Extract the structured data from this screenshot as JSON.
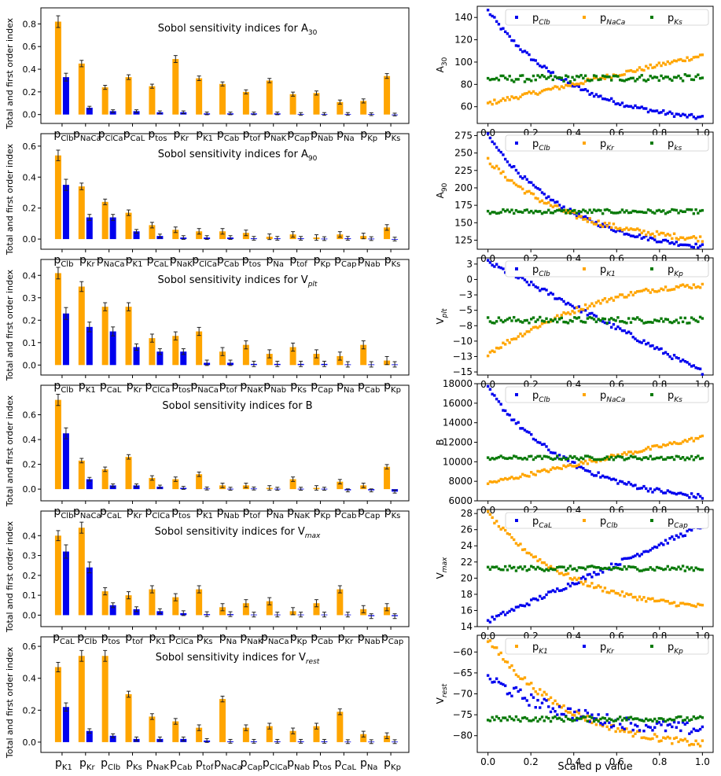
{
  "figure": {
    "left_ylabel": "Total and first order index",
    "right_xlabel": "Scaled p value",
    "colors": {
      "total": "#FFA500",
      "first": "#0000EE",
      "green": "#0A7A0A"
    }
  },
  "chart_data": [
    {
      "type": "bar",
      "panel": "sobol",
      "row": 0,
      "title_main": "Sobol sensitivity indices for A",
      "title_sub": "30",
      "ylabel": "Total and first order index",
      "ylim": [
        -0.03,
        0.9
      ],
      "yticks": [
        0.0,
        0.2,
        0.4,
        0.6,
        0.8
      ],
      "categories": [
        [
          "p",
          "Clb"
        ],
        [
          "p",
          "NaCa"
        ],
        [
          "p",
          "ClCa"
        ],
        [
          "p",
          "CaL"
        ],
        [
          "p",
          "tos"
        ],
        [
          "p",
          "Kr"
        ],
        [
          "p",
          "K1"
        ],
        [
          "p",
          "Cab"
        ],
        [
          "p",
          "tof"
        ],
        [
          "p",
          "NaK"
        ],
        [
          "p",
          "Cap"
        ],
        [
          "p",
          "Nab"
        ],
        [
          "p",
          "Na"
        ],
        [
          "p",
          "Kp"
        ],
        [
          "p",
          "Ks"
        ]
      ],
      "series": [
        {
          "name": "Total order",
          "values": [
            0.82,
            0.45,
            0.24,
            0.33,
            0.25,
            0.49,
            0.32,
            0.27,
            0.2,
            0.3,
            0.18,
            0.19,
            0.11,
            0.12,
            0.34
          ]
        },
        {
          "name": "First order",
          "values": [
            0.33,
            0.06,
            0.03,
            0.03,
            0.02,
            0.02,
            0.01,
            0.01,
            0.01,
            0.01,
            0.005,
            0.005,
            0.005,
            0.003,
            0.0
          ]
        }
      ]
    },
    {
      "type": "bar",
      "panel": "sobol",
      "row": 1,
      "title_main": "Sobol sensitivity indices for A",
      "title_sub": "90",
      "ylabel": "Total and first order index",
      "ylim": [
        -0.03,
        0.65
      ],
      "yticks": [
        0.0,
        0.2,
        0.4,
        0.6
      ],
      "categories": [
        [
          "p",
          "Clb"
        ],
        [
          "p",
          "Kr"
        ],
        [
          "p",
          "NaCa"
        ],
        [
          "p",
          "K1"
        ],
        [
          "p",
          "CaL"
        ],
        [
          "p",
          "NaK"
        ],
        [
          "p",
          "ClCa"
        ],
        [
          "p",
          "Cab"
        ],
        [
          "p",
          "tos"
        ],
        [
          "p",
          "Na"
        ],
        [
          "p",
          "tof"
        ],
        [
          "p",
          "Kp"
        ],
        [
          "p",
          "Cap"
        ],
        [
          "p",
          "Nab"
        ],
        [
          "p",
          "Ks"
        ]
      ],
      "series": [
        {
          "name": "Total order",
          "values": [
            0.54,
            0.34,
            0.24,
            0.17,
            0.09,
            0.06,
            0.05,
            0.05,
            0.04,
            0.015,
            0.03,
            0.01,
            0.03,
            0.02,
            0.075
          ]
        },
        {
          "name": "First order",
          "values": [
            0.35,
            0.14,
            0.14,
            0.05,
            0.02,
            0.01,
            0.01,
            0.01,
            0.005,
            0.005,
            0.005,
            0.003,
            0.005,
            0.003,
            0.0
          ]
        }
      ]
    },
    {
      "type": "bar",
      "panel": "sobol",
      "row": 2,
      "title_main": "Sobol sensitivity indices for V",
      "title_sub": "plt",
      "ylabel": "Total and first order index",
      "ylim": [
        -0.02,
        0.45
      ],
      "yticks": [
        0.0,
        0.1,
        0.2,
        0.3,
        0.4
      ],
      "categories": [
        [
          "p",
          "Clb"
        ],
        [
          "p",
          "K1"
        ],
        [
          "p",
          "CaL"
        ],
        [
          "p",
          "Kr"
        ],
        [
          "p",
          "ClCa"
        ],
        [
          "p",
          "tos"
        ],
        [
          "p",
          "NaCa"
        ],
        [
          "p",
          "tof"
        ],
        [
          "p",
          "NaK"
        ],
        [
          "p",
          "Nab"
        ],
        [
          "p",
          "Ks"
        ],
        [
          "p",
          "Cap"
        ],
        [
          "p",
          "Na"
        ],
        [
          "p",
          "Cab"
        ],
        [
          "p",
          "Kp"
        ]
      ],
      "series": [
        {
          "name": "Total order",
          "values": [
            0.41,
            0.35,
            0.26,
            0.26,
            0.12,
            0.13,
            0.15,
            0.06,
            0.09,
            0.05,
            0.08,
            0.05,
            0.04,
            0.09,
            0.02
          ]
        },
        {
          "name": "First order",
          "values": [
            0.23,
            0.17,
            0.15,
            0.08,
            0.06,
            0.06,
            0.01,
            0.01,
            0.005,
            0.005,
            0.005,
            0.005,
            0.003,
            0.003,
            0.003
          ]
        }
      ]
    },
    {
      "type": "bar",
      "panel": "sobol",
      "row": 3,
      "title_main": "Sobol sensitivity indices for B",
      "title_sub": "",
      "ylabel": "Total and first order index",
      "ylim": [
        -0.05,
        0.8
      ],
      "yticks": [
        0.0,
        0.2,
        0.4,
        0.6
      ],
      "categories": [
        [
          "p",
          "Clb"
        ],
        [
          "p",
          "NaCa"
        ],
        [
          "p",
          "CaL"
        ],
        [
          "p",
          "Kr"
        ],
        [
          "p",
          "ClCa"
        ],
        [
          "p",
          "tos"
        ],
        [
          "p",
          "K1"
        ],
        [
          "p",
          "Nab"
        ],
        [
          "p",
          "tof"
        ],
        [
          "p",
          "Na"
        ],
        [
          "p",
          "NaK"
        ],
        [
          "p",
          "Kp"
        ],
        [
          "p",
          "Cab"
        ],
        [
          "p",
          "Cap"
        ],
        [
          "p",
          "Ks"
        ]
      ],
      "series": [
        {
          "name": "Total order",
          "values": [
            0.72,
            0.23,
            0.16,
            0.26,
            0.09,
            0.08,
            0.12,
            0.03,
            0.03,
            0.01,
            0.08,
            0.01,
            0.06,
            0.03,
            0.18
          ]
        },
        {
          "name": "First order",
          "values": [
            0.45,
            0.08,
            0.03,
            0.03,
            0.02,
            0.01,
            0.005,
            0.003,
            0.005,
            0.003,
            0.003,
            0.003,
            -0.01,
            -0.01,
            -0.02
          ]
        }
      ]
    },
    {
      "type": "bar",
      "panel": "sobol",
      "row": 4,
      "title_main": "Sobol sensitivity indices for V",
      "title_sub": "max",
      "ylabel": "Total and first order index",
      "ylim": [
        -0.03,
        0.5
      ],
      "yticks": [
        0.0,
        0.1,
        0.2,
        0.3,
        0.4
      ],
      "categories": [
        [
          "p",
          "CaL"
        ],
        [
          "p",
          "Clb"
        ],
        [
          "p",
          "tos"
        ],
        [
          "p",
          "tof"
        ],
        [
          "p",
          "K1"
        ],
        [
          "p",
          "ClCa"
        ],
        [
          "p",
          "Ks"
        ],
        [
          "p",
          "Na"
        ],
        [
          "p",
          "NaK"
        ],
        [
          "p",
          "NaCa"
        ],
        [
          "p",
          "Kp"
        ],
        [
          "p",
          "Cab"
        ],
        [
          "p",
          "Kr"
        ],
        [
          "p",
          "Nab"
        ],
        [
          "p",
          "Cap"
        ]
      ],
      "series": [
        {
          "name": "Total order",
          "values": [
            0.4,
            0.44,
            0.12,
            0.1,
            0.13,
            0.09,
            0.13,
            0.04,
            0.06,
            0.07,
            0.02,
            0.06,
            0.13,
            0.03,
            0.04
          ]
        },
        {
          "name": "First order",
          "values": [
            0.32,
            0.24,
            0.05,
            0.03,
            0.02,
            0.01,
            0.005,
            0.005,
            0.003,
            0.003,
            0.003,
            0.003,
            0.003,
            -0.005,
            -0.005
          ]
        }
      ]
    },
    {
      "type": "bar",
      "panel": "sobol",
      "row": 5,
      "title_main": "Sobol sensitivity indices for V",
      "title_sub": "rest",
      "ylabel": "Total and first order index",
      "ylim": [
        -0.03,
        0.63
      ],
      "yticks": [
        0.0,
        0.2,
        0.4,
        0.6
      ],
      "categories": [
        [
          "p",
          "K1"
        ],
        [
          "p",
          "Kr"
        ],
        [
          "p",
          "Clb"
        ],
        [
          "p",
          "Ks"
        ],
        [
          "p",
          "NaK"
        ],
        [
          "p",
          "Cab"
        ],
        [
          "p",
          "tof"
        ],
        [
          "p",
          "NaCa"
        ],
        [
          "p",
          "Cap"
        ],
        [
          "p",
          "ClCa"
        ],
        [
          "p",
          "Nab"
        ],
        [
          "p",
          "tos"
        ],
        [
          "p",
          "CaL"
        ],
        [
          "p",
          "Na"
        ],
        [
          "p",
          "Kp"
        ]
      ],
      "series": [
        {
          "name": "Total order",
          "values": [
            0.47,
            0.54,
            0.54,
            0.3,
            0.16,
            0.13,
            0.09,
            0.27,
            0.09,
            0.1,
            0.07,
            0.1,
            0.19,
            0.05,
            0.04
          ]
        },
        {
          "name": "First order",
          "values": [
            0.22,
            0.07,
            0.04,
            0.02,
            0.02,
            0.02,
            0.01,
            0.005,
            0.005,
            0.005,
            0.005,
            0.005,
            0.003,
            0.003,
            0.003
          ]
        }
      ]
    },
    {
      "type": "scatter",
      "panel": "scatter",
      "row": 0,
      "ylabel_main": "A",
      "ylabel_sub": "30",
      "xlim": [
        -0.05,
        1.05
      ],
      "ylim": [
        45,
        150
      ],
      "xticks": [
        0.0,
        0.2,
        0.4,
        0.6,
        0.8,
        1.0
      ],
      "yticks": [
        60,
        80,
        100,
        120,
        140
      ],
      "series": [
        {
          "name_main": "p",
          "name_sub": "Clb",
          "color": "blue",
          "y0": 146,
          "y1": 50,
          "shape": "decay",
          "noise": 2
        },
        {
          "name_main": "p",
          "name_sub": "NaCa",
          "color": "orange",
          "y0": 63,
          "y1": 106,
          "shape": "linear",
          "noise": 2
        },
        {
          "name_main": "p",
          "name_sub": "Ks",
          "color": "green",
          "y0": 85,
          "y1": 86,
          "shape": "linear",
          "noise": 3
        }
      ]
    },
    {
      "type": "scatter",
      "panel": "scatter",
      "row": 1,
      "ylabel_main": "A",
      "ylabel_sub": "90",
      "xlim": [
        -0.05,
        1.05
      ],
      "ylim": [
        112,
        280
      ],
      "xticks": [
        0.0,
        0.2,
        0.4,
        0.6,
        0.8,
        1.0
      ],
      "yticks": [
        125,
        150,
        175,
        200,
        225,
        250,
        275
      ],
      "series": [
        {
          "name_main": "p",
          "name_sub": "Clb",
          "color": "blue",
          "y0": 275,
          "y1": 116,
          "shape": "decay",
          "noise": 3
        },
        {
          "name_main": "p",
          "name_sub": "Kr",
          "color": "orange",
          "y0": 240,
          "y1": 127,
          "shape": "decay",
          "noise": 4
        },
        {
          "name_main": "p",
          "name_sub": "ks",
          "color": "green",
          "y0": 166,
          "y1": 166,
          "shape": "linear",
          "noise": 3
        }
      ]
    },
    {
      "type": "scatter",
      "panel": "scatter",
      "row": 2,
      "ylabel_main": "V",
      "ylabel_sub": "plt",
      "xlim": [
        -0.05,
        1.05
      ],
      "ylim": [
        -15.5,
        3.5
      ],
      "xticks": [
        0.0,
        0.2,
        0.4,
        0.6,
        0.8,
        1.0
      ],
      "yticks": [
        2.5,
        0.0,
        -2.5,
        -5.0,
        -7.5,
        -10.0,
        -12.5,
        -15.0
      ],
      "series": [
        {
          "name_main": "p",
          "name_sub": "Clb",
          "color": "blue",
          "y0": 2.8,
          "y1": -15,
          "shape": "linear",
          "noise": 0.4
        },
        {
          "name_main": "p",
          "name_sub": "K1",
          "color": "orange",
          "y0": -12,
          "y1": -1,
          "shape": "grow",
          "noise": 0.4
        },
        {
          "name_main": "p",
          "name_sub": "Kp",
          "color": "green",
          "y0": -6.6,
          "y1": -6.6,
          "shape": "linear",
          "noise": 0.5
        }
      ]
    },
    {
      "type": "scatter",
      "panel": "scatter",
      "row": 3,
      "ylabel_main": "B",
      "ylabel_sub": "",
      "xlim": [
        -0.05,
        1.05
      ],
      "ylim": [
        6000,
        18000
      ],
      "xticks": [
        0.0,
        0.2,
        0.4,
        0.6,
        0.8,
        1.0
      ],
      "yticks": [
        6000,
        8000,
        10000,
        12000,
        14000,
        16000,
        18000
      ],
      "series": [
        {
          "name_main": "p",
          "name_sub": "Clb",
          "color": "blue",
          "y0": 17500,
          "y1": 6400,
          "shape": "decay",
          "noise": 250
        },
        {
          "name_main": "p",
          "name_sub": "NaCa",
          "color": "orange",
          "y0": 7800,
          "y1": 12500,
          "shape": "linear",
          "noise": 200
        },
        {
          "name_main": "p",
          "name_sub": "Ks",
          "color": "green",
          "y0": 10400,
          "y1": 10400,
          "shape": "linear",
          "noise": 200
        }
      ]
    },
    {
      "type": "scatter",
      "panel": "scatter",
      "row": 4,
      "ylabel_main": "V",
      "ylabel_sub": "max",
      "xlim": [
        -0.05,
        1.05
      ],
      "ylim": [
        14,
        28.5
      ],
      "xticks": [
        0.0,
        0.2,
        0.4,
        0.6,
        0.8,
        1.0
      ],
      "yticks": [
        14,
        16,
        18,
        20,
        22,
        24,
        26,
        28
      ],
      "series": [
        {
          "name_main": "p",
          "name_sub": "CaL",
          "color": "blue",
          "y0": 14.7,
          "y1": 26.5,
          "shape": "linear",
          "noise": 0.3
        },
        {
          "name_main": "p",
          "name_sub": "Clb",
          "color": "orange",
          "y0": 28,
          "y1": 16.5,
          "shape": "decay",
          "noise": 0.3
        },
        {
          "name_main": "p",
          "name_sub": "Cap",
          "color": "green",
          "y0": 21.2,
          "y1": 21.2,
          "shape": "linear",
          "noise": 0.3
        }
      ]
    },
    {
      "type": "scatter",
      "panel": "scatter",
      "row": 5,
      "ylabel_main": "V",
      "ylabel_sub": "rest",
      "xlim": [
        -0.05,
        1.05
      ],
      "ylim": [
        -84,
        -56
      ],
      "xticks": [
        0.0,
        0.2,
        0.4,
        0.6,
        0.8,
        1.0
      ],
      "yticks": [
        -60,
        -65,
        -70,
        -75,
        -80
      ],
      "xlabel": "Scaled p value",
      "series": [
        {
          "name_main": "p",
          "name_sub": "K1",
          "color": "orange",
          "y0": -57,
          "y1": -82,
          "shape": "decay",
          "noise": 0.8
        },
        {
          "name_main": "p",
          "name_sub": "Kr",
          "color": "blue",
          "y0": -66,
          "y1": -78.5,
          "shape": "decay",
          "noise": 1.5
        },
        {
          "name_main": "p",
          "name_sub": "Kp",
          "color": "green",
          "y0": -76,
          "y1": -76,
          "shape": "linear",
          "noise": 0.6
        }
      ]
    }
  ]
}
